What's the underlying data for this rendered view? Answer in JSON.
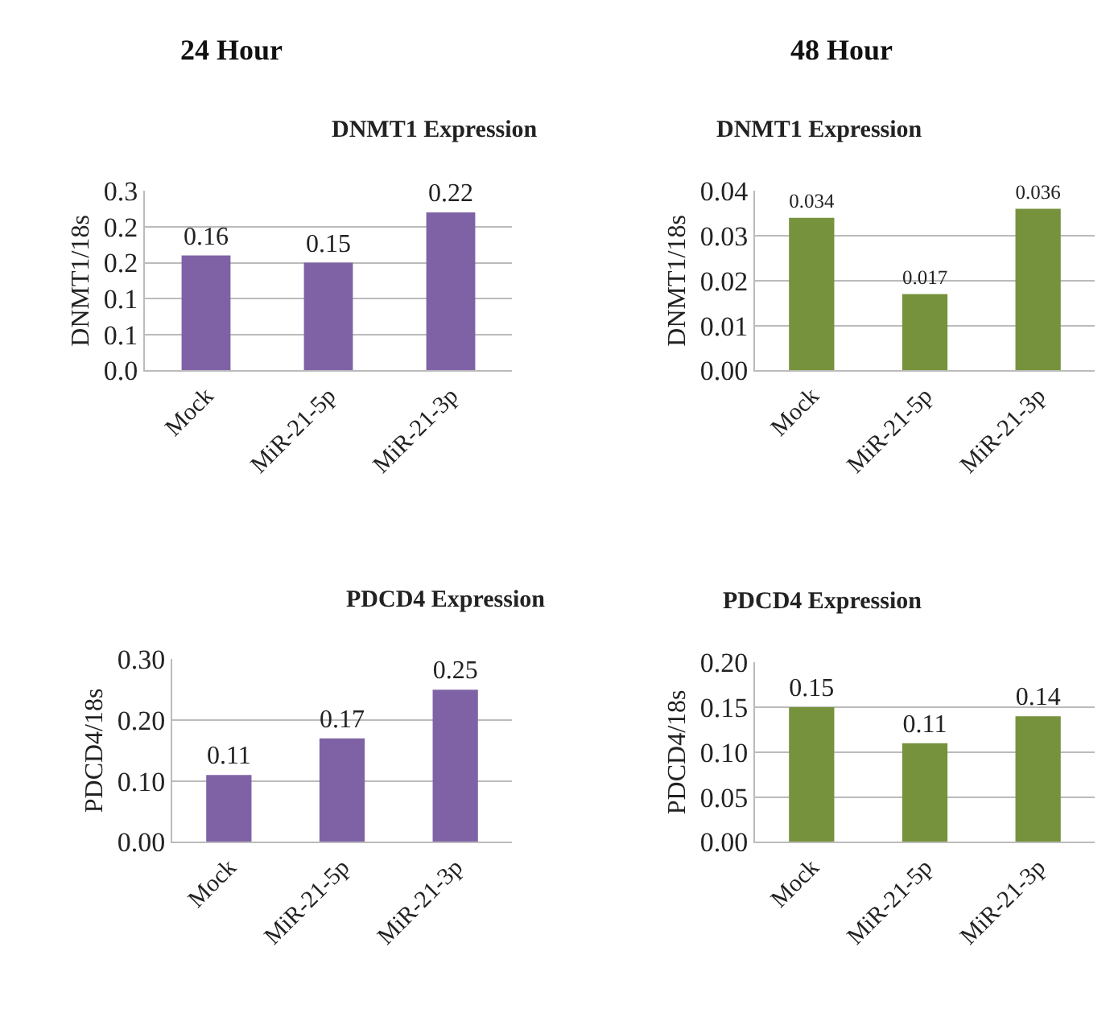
{
  "chart_data": [
    {
      "type": "bar",
      "title": "DNMT1 Expression",
      "ylabel": "DNMT1/18s",
      "annotations": [
        "24 Hour"
      ],
      "categories": [
        "Mock",
        "MiR-21-5p",
        "MiR-21-3p"
      ],
      "values": [
        0.16,
        0.15,
        0.22
      ],
      "color": "#7f62a6",
      "data_labels": true,
      "ylim": [
        0,
        0.25
      ],
      "yticks": [
        {
          "value": 0,
          "label": "0.0"
        },
        {
          "value": 0.05,
          "label": "0.1"
        },
        {
          "value": 0.1,
          "label": "0.1"
        },
        {
          "value": 0.15,
          "label": "0.2"
        },
        {
          "value": 0.2,
          "label": "0.2"
        },
        {
          "value": 0.25,
          "label": "0.3"
        }
      ],
      "grid": "y"
    },
    {
      "type": "bar",
      "title": "DNMT1 Expression",
      "ylabel": "DNMT1/18s",
      "annotations": [
        "48 Hour"
      ],
      "categories": [
        "Mock",
        "MiR-21-5p",
        "MiR-21-3p"
      ],
      "values": [
        0.034,
        0.017,
        0.036
      ],
      "color": "#76923c",
      "data_labels": true,
      "ylim": [
        0,
        0.04
      ],
      "yticks": [
        {
          "value": 0,
          "label": "0.00"
        },
        {
          "value": 0.01,
          "label": "0.01"
        },
        {
          "value": 0.02,
          "label": "0.02"
        },
        {
          "value": 0.03,
          "label": "0.03"
        },
        {
          "value": 0.04,
          "label": "0.04"
        }
      ],
      "grid": "y"
    },
    {
      "type": "bar",
      "title": "PDCD4 Expression",
      "ylabel": "PDCD4/18s",
      "categories": [
        "Mock",
        "MiR-21-5p",
        "MiR-21-3p"
      ],
      "values": [
        0.11,
        0.17,
        0.25
      ],
      "color": "#7f62a6",
      "data_labels": true,
      "ylim": [
        0,
        0.3
      ],
      "yticks": [
        {
          "value": 0,
          "label": "0.00"
        },
        {
          "value": 0.1,
          "label": "0.10"
        },
        {
          "value": 0.2,
          "label": "0.20"
        },
        {
          "value": 0.3,
          "label": "0.30"
        }
      ],
      "grid": "y"
    },
    {
      "type": "bar",
      "title": "PDCD4 Expression",
      "ylabel": "PDCD4/18s",
      "categories": [
        "Mock",
        "MiR-21-5p",
        "MiR-21-3p"
      ],
      "values": [
        0.15,
        0.11,
        0.14
      ],
      "color": "#76923c",
      "data_labels": true,
      "ylim": [
        0,
        0.2
      ],
      "yticks": [
        {
          "value": 0,
          "label": "0.00"
        },
        {
          "value": 0.05,
          "label": "0.05"
        },
        {
          "value": 0.1,
          "label": "0.10"
        },
        {
          "value": 0.15,
          "label": "0.15"
        },
        {
          "value": 0.2,
          "label": "0.20"
        }
      ],
      "grid": "y"
    }
  ]
}
